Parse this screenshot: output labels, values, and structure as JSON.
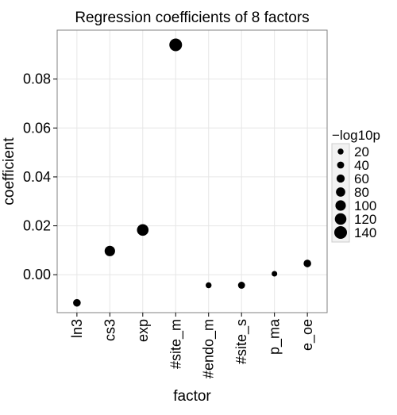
{
  "chart_data": {
    "type": "scatter",
    "title": "Regression coefficients of 8 factors",
    "xlabel": "factor",
    "ylabel": "coefficient",
    "categories": [
      "ln3",
      "cs3",
      "exp",
      "#site_m",
      "#endo_m",
      "#site_s",
      "p_ma",
      "e_oe"
    ],
    "values": [
      -0.0115,
      0.0097,
      0.0183,
      0.094,
      -0.0043,
      -0.0043,
      0.0004,
      0.0046
    ],
    "size_values": [
      50,
      100,
      120,
      140,
      20,
      40,
      15,
      50
    ],
    "ylim": [
      -0.0155,
      0.1
    ],
    "yticks": [
      0.0,
      0.02,
      0.04,
      0.06,
      0.08
    ],
    "ytick_labels": [
      "0.00",
      "0.02",
      "0.04",
      "0.06",
      "0.08"
    ],
    "grid": true,
    "legend": {
      "title": "−log10p",
      "placement": "right",
      "entries": [
        {
          "value": 20,
          "label": "20"
        },
        {
          "value": 40,
          "label": "40"
        },
        {
          "value": 60,
          "label": "60"
        },
        {
          "value": 80,
          "label": "80"
        },
        {
          "value": 100,
          "label": "100"
        },
        {
          "value": 120,
          "label": "120"
        },
        {
          "value": 140,
          "label": "140"
        }
      ]
    },
    "colors": {
      "point": "#000000",
      "grid": "#e6e6e6",
      "panel_border": "#808080",
      "legend_key_bg": "#f2f2f2",
      "legend_key_border": "#cccccc"
    }
  }
}
